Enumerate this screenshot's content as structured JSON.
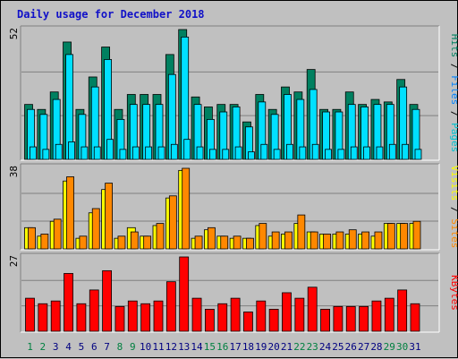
{
  "chart_data": {
    "type": "bar",
    "title": "Daily usage for December 2018",
    "x": [
      "1",
      "2",
      "3",
      "4",
      "5",
      "6",
      "7",
      "8",
      "9",
      "10",
      "11",
      "12",
      "13",
      "14",
      "15",
      "16",
      "17",
      "18",
      "19",
      "20",
      "21",
      "22",
      "23",
      "24",
      "25",
      "26",
      "27",
      "28",
      "29",
      "30",
      "31"
    ],
    "weekend_days": [
      "1",
      "2",
      "8",
      "9",
      "15",
      "16",
      "22",
      "23",
      "29",
      "30"
    ],
    "panels": [
      {
        "ymax": 52,
        "side_labels": [
          "Pages",
          "Files",
          "Hits"
        ],
        "series": [
          {
            "name": "Hits",
            "color": "#008060",
            "values": [
              22,
              20,
              27,
              47,
              20,
              33,
              45,
              20,
              26,
              26,
              26,
              42,
              52,
              25,
              21,
              22,
              22,
              15,
              26,
              20,
              29,
              27,
              36,
              20,
              20,
              27,
              22,
              24,
              23,
              32,
              22
            ]
          },
          {
            "name": "Files",
            "color": "#00e0ff",
            "values": [
              20,
              18,
              24,
              42,
              18,
              29,
              40,
              16,
              22,
              22,
              22,
              34,
              49,
              22,
              16,
              19,
              21,
              13,
              23,
              18,
              26,
              24,
              28,
              19,
              19,
              22,
              21,
              22,
              22,
              29,
              20
            ]
          },
          {
            "name": "Pages",
            "color": "#00e0ff",
            "values": [
              5,
              4,
              6,
              7,
              5,
              5,
              8,
              4,
              5,
              5,
              5,
              6,
              8,
              5,
              4,
              4,
              5,
              3,
              6,
              4,
              6,
              5,
              6,
              4,
              4,
              5,
              5,
              5,
              6,
              6,
              4
            ]
          }
        ]
      },
      {
        "ymax": 38,
        "side_labels": [
          "Sites",
          "Visits"
        ],
        "series": [
          {
            "name": "Visits",
            "color": "#ffff00",
            "values": [
              10,
              6,
              13,
              32,
              5,
              17,
              28,
              5,
              10,
              6,
              11,
              24,
              37,
              5,
              9,
              6,
              5,
              5,
              11,
              6,
              7,
              12,
              8,
              7,
              7,
              7,
              7,
              6,
              12,
              12,
              12
            ]
          },
          {
            "name": "Sites",
            "color": "#ff8800",
            "values": [
              10,
              7,
              14,
              34,
              6,
              19,
              31,
              6,
              8,
              6,
              12,
              25,
              38,
              6,
              10,
              6,
              6,
              5,
              12,
              8,
              8,
              16,
              8,
              7,
              8,
              9,
              8,
              8,
              12,
              12,
              13
            ]
          }
        ]
      },
      {
        "ymax": 27,
        "side_labels": [
          "KBytes"
        ],
        "series": [
          {
            "name": "KBytes",
            "color": "#ff0000",
            "values": [
              12,
              10,
              11,
              21,
              10,
              15,
              22,
              9,
              11,
              10,
              11,
              18,
              27,
              12,
              8,
              10,
              12,
              7,
              11,
              8,
              14,
              12,
              16,
              8,
              9,
              9,
              9,
              11,
              12,
              15,
              10
            ]
          }
        ]
      }
    ]
  }
}
